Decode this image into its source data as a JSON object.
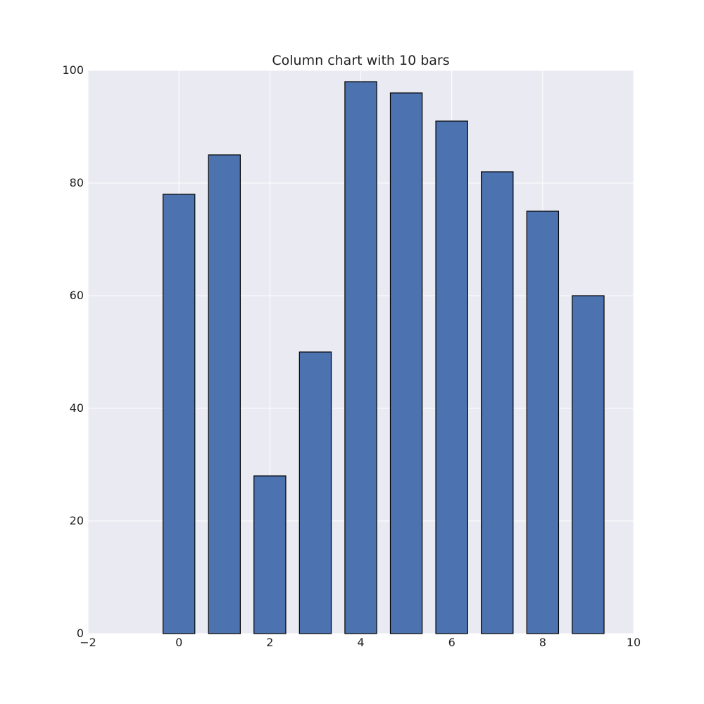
{
  "chart_data": {
    "type": "bar",
    "title": "Column chart with 10 bars",
    "xlabel": "",
    "ylabel": "",
    "x": [
      0,
      1,
      2,
      3,
      4,
      5,
      6,
      7,
      8,
      9
    ],
    "values": [
      78,
      85,
      28,
      50,
      98,
      96,
      91,
      82,
      75,
      60
    ],
    "bar_width": 0.7,
    "xlim": [
      -2,
      10
    ],
    "ylim": [
      0,
      100
    ],
    "xticks": [
      -2,
      0,
      2,
      4,
      6,
      8,
      10
    ],
    "xtick_labels": [
      "−2",
      "0",
      "2",
      "4",
      "6",
      "8",
      "10"
    ],
    "yticks": [
      0,
      20,
      40,
      60,
      80,
      100
    ],
    "ytick_labels": [
      "0",
      "20",
      "40",
      "60",
      "80",
      "100"
    ],
    "grid": true,
    "legend": "none",
    "colors": {
      "bar_fill": "#4c72b0",
      "bar_edge": "#000000",
      "plot_background": "#eaeaf2",
      "grid": "#ffffff"
    }
  }
}
